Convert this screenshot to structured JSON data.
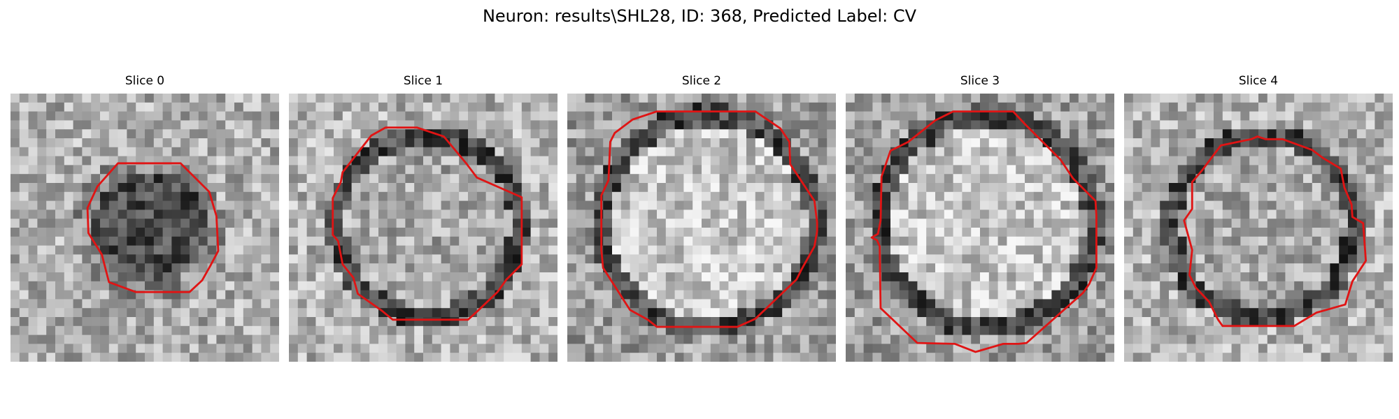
{
  "figure": {
    "title": "Neuron: results\\SHL28, ID: 368, Predicted Label: CV"
  },
  "colors": {
    "background": "#ffffff",
    "contour": "#e01414",
    "text": "#000000"
  },
  "panels": [
    {
      "title": "Slice 0",
      "cell_tone": "dark"
    },
    {
      "title": "Slice 1",
      "cell_tone": "ring"
    },
    {
      "title": "Slice 2",
      "cell_tone": "bright"
    },
    {
      "title": "Slice 3",
      "cell_tone": "bright"
    },
    {
      "title": "Slice 4",
      "cell_tone": "ring"
    }
  ]
}
